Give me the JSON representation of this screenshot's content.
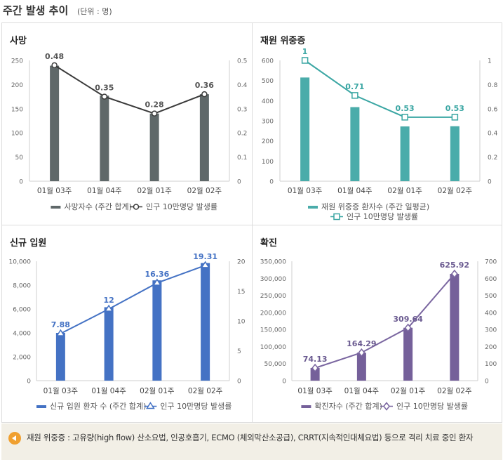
{
  "header": {
    "title": "주간 발생 추이",
    "unit": "(단위 : 명)"
  },
  "note": {
    "text": "재원 위중증 : 고유량(high flow) 산소요법, 인공호흡기, ECMO (체외막산소공급), CRRT(지속적인대체요법) 등으로 격리 치료 중인 환자"
  },
  "chart_data": [
    {
      "type": "bar",
      "title": "사망",
      "categories": [
        "01월 03주",
        "01월 04주",
        "02월 01주",
        "02월 02주"
      ],
      "series": [
        {
          "name": "사망자수 (주간 합계)",
          "type": "bar",
          "axis": "left",
          "values": [
            239,
            177,
            140,
            180
          ]
        },
        {
          "name": "인구 10만명당 발생률",
          "type": "line",
          "axis": "right",
          "values": [
            0.48,
            0.35,
            0.28,
            0.36
          ],
          "labels": [
            "0.48",
            "0.35",
            "0.28",
            "0.36"
          ]
        }
      ],
      "ylim_left": [
        0,
        250
      ],
      "yticks_left": [
        "0",
        "50",
        "100",
        "150",
        "200",
        "250"
      ],
      "ylim_right": [
        0,
        0.5
      ],
      "yticks_right": [
        "0",
        "0.1",
        "0.2",
        "0.3",
        "0.4",
        "0.5"
      ],
      "bar_color": "#5f6869",
      "line_color": "#3a3a3a",
      "marker": "circle",
      "label_color": "#555555"
    },
    {
      "type": "bar",
      "title": "재원 위중증",
      "categories": [
        "01월 03주",
        "01월 04주",
        "02월 01주",
        "02월 02주"
      ],
      "series": [
        {
          "name": "재원 위중증 환자수 (주간 일평균)",
          "type": "bar",
          "axis": "left",
          "values": [
            515,
            368,
            272,
            273
          ]
        },
        {
          "name": "인구 10만명당 발생률",
          "type": "line",
          "axis": "right",
          "values": [
            1,
            0.71,
            0.53,
            0.53
          ],
          "labels": [
            "1",
            "0.71",
            "0.53",
            "0.53"
          ]
        }
      ],
      "ylim_left": [
        0,
        600
      ],
      "yticks_left": [
        "0",
        "100",
        "200",
        "300",
        "400",
        "500",
        "600"
      ],
      "ylim_right": [
        0,
        1
      ],
      "yticks_right": [
        "0",
        "0.2",
        "0.4",
        "0.6",
        "0.8",
        "1"
      ],
      "bar_color": "#4aacaa",
      "line_color": "#3aa6a3",
      "marker": "square",
      "label_color": "#3aa6a3"
    },
    {
      "type": "bar",
      "title": "신규 입원",
      "categories": [
        "01월 03주",
        "01월 04주",
        "02월 01주",
        "02월 02주"
      ],
      "series": [
        {
          "name": "신규 입원 환자 수 (주간 합계)",
          "type": "bar",
          "axis": "left",
          "values": [
            4000,
            6150,
            8400,
            9850
          ]
        },
        {
          "name": "인구 10만명당 발생률",
          "type": "line",
          "axis": "right",
          "values": [
            7.88,
            12,
            16.36,
            19.31
          ],
          "labels": [
            "7.88",
            "12",
            "16.36",
            "19.31"
          ]
        }
      ],
      "ylim_left": [
        0,
        10000
      ],
      "yticks_left": [
        "0",
        "2,000",
        "4,000",
        "6,000",
        "8,000",
        "10,000"
      ],
      "ylim_right": [
        0,
        20
      ],
      "yticks_right": [
        "0",
        "5",
        "10",
        "15",
        "20"
      ],
      "bar_color": "#4472c4",
      "line_color": "#4472c4",
      "marker": "triangle",
      "label_color": "#4472c4"
    },
    {
      "type": "bar",
      "title": "확진",
      "categories": [
        "01월 03주",
        "01월 04주",
        "02월 01주",
        "02월 02주"
      ],
      "series": [
        {
          "name": "확진자수 (주간 합계)",
          "type": "bar",
          "axis": "left",
          "values": [
            37000,
            82000,
            155000,
            313000
          ]
        },
        {
          "name": "인구 10만명당 발생률",
          "type": "line",
          "axis": "right",
          "values": [
            74.13,
            164.29,
            309.64,
            625.92
          ],
          "labels": [
            "74.13",
            "164.29",
            "309.64",
            "625.92"
          ]
        }
      ],
      "ylim_left": [
        0,
        350000
      ],
      "yticks_left": [
        "0",
        "50,000",
        "100,000",
        "150,000",
        "200,000",
        "250,000",
        "300,000",
        "350,000"
      ],
      "ylim_right": [
        0,
        700
      ],
      "yticks_right": [
        "0",
        "100",
        "200",
        "300",
        "400",
        "500",
        "600",
        "700"
      ],
      "bar_color": "#75609a",
      "line_color": "#7a66a0",
      "marker": "diamond",
      "label_color": "#6a5a90"
    }
  ]
}
